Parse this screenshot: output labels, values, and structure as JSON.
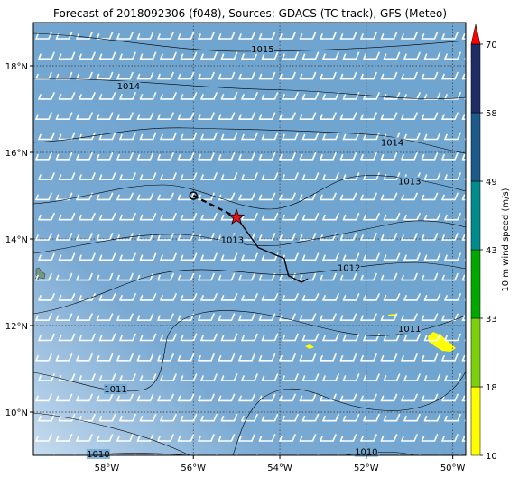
{
  "title": "Forecast of 2018092306 (f048), Sources: GDACS (TC track), GFS (Meteo)",
  "map": {
    "lon_range": [
      -59.7,
      -49.7
    ],
    "lat_range": [
      9.0,
      19.0
    ],
    "x_ticks": [
      {
        "value": -58,
        "label": "58°W"
      },
      {
        "value": -56,
        "label": "56°W"
      },
      {
        "value": -54,
        "label": "54°W"
      },
      {
        "value": -52,
        "label": "52°W"
      },
      {
        "value": -50,
        "label": "50°W"
      }
    ],
    "y_ticks": [
      {
        "value": 10,
        "label": "10°N"
      },
      {
        "value": 12,
        "label": "12°N"
      },
      {
        "value": 14,
        "label": "14°N"
      },
      {
        "value": 16,
        "label": "16°N"
      },
      {
        "value": 18,
        "label": "18°N"
      }
    ],
    "gridlines": "dotted",
    "ocean_color": "#74a8d0",
    "isobar_labels": [
      {
        "label": "1015",
        "lon": -54.4,
        "lat": 18.35
      },
      {
        "label": "1014",
        "lon": -57.5,
        "lat": 17.5
      },
      {
        "label": "1014",
        "lon": -51.4,
        "lat": 16.2
      },
      {
        "label": "1013",
        "lon": -51.0,
        "lat": 15.3
      },
      {
        "label": "1013",
        "lon": -55.1,
        "lat": 13.95
      },
      {
        "label": "1012",
        "lon": -52.4,
        "lat": 13.3
      },
      {
        "label": "1011",
        "lon": -51.0,
        "lat": 11.9
      },
      {
        "label": "1011",
        "lon": -57.8,
        "lat": 10.5
      },
      {
        "label": "1010",
        "lon": -58.2,
        "lat": 9.0
      },
      {
        "label": "1010",
        "lon": -52.0,
        "lat": 9.05
      }
    ],
    "track_observed": [
      {
        "lon": -56.0,
        "lat": 15.0
      },
      {
        "lon": -55.0,
        "lat": 14.5
      }
    ],
    "track_forecast": [
      {
        "lon": -55.0,
        "lat": 14.5
      },
      {
        "lon": -54.5,
        "lat": 13.8
      },
      {
        "lon": -53.9,
        "lat": 13.55
      },
      {
        "lon": -53.8,
        "lat": 13.15
      },
      {
        "lon": -53.5,
        "lat": 13.0
      },
      {
        "lon": -53.35,
        "lat": 13.08
      }
    ],
    "track_start_marker": "circle",
    "current_position_marker": "red-star",
    "track_color": "#000000",
    "star_color": "#e8101a"
  },
  "colorbar": {
    "label": "10 m wind speed (m/s)",
    "ticks": [
      "10",
      "18",
      "33",
      "43",
      "49",
      "58",
      "70"
    ],
    "colors": [
      "#ffff00",
      "#7cd10c",
      "#00a800",
      "#008c8c",
      "#1d5a8c",
      "#1e2d66"
    ],
    "extend_color": "#ff0000"
  }
}
